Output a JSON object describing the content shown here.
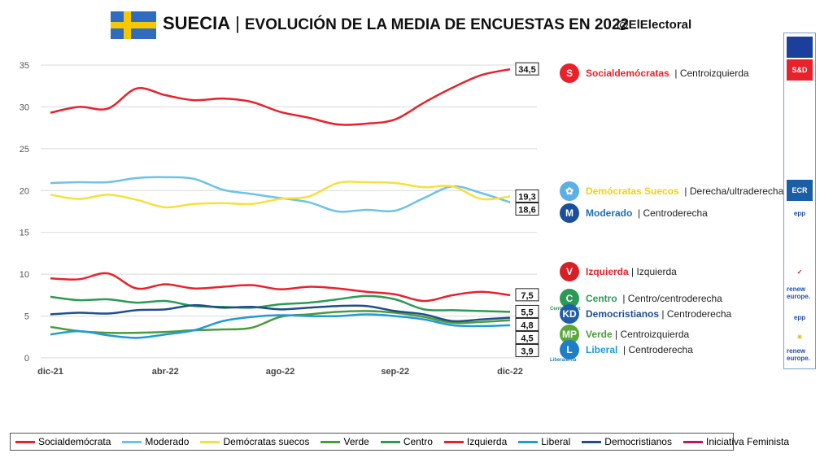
{
  "header": {
    "country": "SUECIA",
    "subtitle": "EVOLUCIÓN DE LA MEDIA DE ENCUESTAS EN 2022",
    "handle": "@ElElectoral",
    "separator": "|"
  },
  "chart_data": {
    "type": "line",
    "title": "SUECIA | EVOLUCIÓN DE LA MEDIA DE ENCUESTAS EN 2022",
    "x_labels": [
      "dic-21",
      "abr-22",
      "ago-22",
      "sep-22",
      "dic-22"
    ],
    "ylim": [
      0,
      35
    ],
    "yticks": [
      0,
      5,
      10,
      15,
      20,
      25,
      30,
      35
    ],
    "grid": true,
    "legend_position": "bottom",
    "series": [
      {
        "name": "Socialdemócrata",
        "color": "#e8222a",
        "label": "34,5",
        "values": [
          29.3,
          30.0,
          29.8,
          32.2,
          31.4,
          30.8,
          31.0,
          30.6,
          29.4,
          28.7,
          27.9,
          28.0,
          28.5,
          30.5,
          32.3,
          33.8,
          34.5
        ]
      },
      {
        "name": "Moderado",
        "color": "#6cc2ea",
        "label": "18,6",
        "values": [
          20.9,
          21.0,
          21.0,
          21.5,
          21.6,
          21.4,
          20.1,
          19.6,
          19.1,
          18.6,
          17.5,
          17.7,
          17.6,
          19.1,
          20.5,
          19.7,
          18.6
        ]
      },
      {
        "name": "Demócratas suecos",
        "color": "#f7e03b",
        "label": "19,3",
        "values": [
          19.5,
          19.0,
          19.5,
          18.9,
          18.0,
          18.4,
          18.5,
          18.4,
          19.0,
          19.3,
          20.9,
          21.0,
          20.9,
          20.4,
          20.5,
          19.0,
          19.3
        ]
      },
      {
        "name": "Verde",
        "color": "#4c9a3c",
        "label": "4,5",
        "values": [
          3.7,
          3.2,
          3.0,
          3.0,
          3.1,
          3.3,
          3.4,
          3.6,
          4.9,
          5.2,
          5.5,
          5.6,
          5.4,
          4.9,
          4.2,
          4.3,
          4.5
        ]
      },
      {
        "name": "Centro",
        "color": "#2a9a55",
        "label": "5,5",
        "values": [
          7.3,
          6.9,
          7.0,
          6.6,
          6.8,
          6.2,
          6.1,
          6.0,
          6.4,
          6.6,
          7.0,
          7.4,
          7.0,
          5.8,
          5.7,
          5.6,
          5.5
        ]
      },
      {
        "name": "Izquierda",
        "color": "#e8222a",
        "label": "7,5",
        "values": [
          9.5,
          9.4,
          10.1,
          8.3,
          8.8,
          8.3,
          8.5,
          8.7,
          8.2,
          8.5,
          8.3,
          7.9,
          7.6,
          6.8,
          7.5,
          7.9,
          7.5
        ]
      },
      {
        "name": "Liberal",
        "color": "#1f9bd6",
        "label": "3,9",
        "values": [
          2.8,
          3.2,
          2.7,
          2.4,
          2.8,
          3.3,
          4.4,
          4.9,
          5.1,
          5.0,
          5.0,
          5.2,
          5.0,
          4.6,
          3.9,
          3.8,
          3.9
        ]
      },
      {
        "name": "Democristianos",
        "color": "#1f4f8a",
        "label": "4,8",
        "values": [
          5.2,
          5.4,
          5.3,
          5.7,
          5.8,
          6.3,
          6.0,
          6.1,
          5.8,
          6.0,
          6.2,
          6.2,
          5.6,
          5.2,
          4.4,
          4.6,
          4.8
        ]
      },
      {
        "name": "Iniciativa Feminista",
        "color": "#c2185b",
        "values": []
      }
    ]
  },
  "annotations": [
    {
      "id": "sd",
      "name": "Socialdemócratas",
      "detail": " | Centroizquierda",
      "color": "#e8222a",
      "logo_color": "#e8222a",
      "logo_text": "S"
    },
    {
      "id": "dsue",
      "name": "Demócratas Suecos",
      "detail": " | Derecha/ultraderecha",
      "color": "#f2d10c",
      "logo_color": "#5ab0e6",
      "logo_text": "✿"
    },
    {
      "id": "mod",
      "name": "Moderado",
      "detail": " | Centroderecha",
      "color": "#1b6fb5",
      "logo_color": "#1b4f9c",
      "logo_text": "M"
    },
    {
      "id": "izq",
      "name": "Izquierda",
      "detail": "| Izquierda",
      "color": "#e8222a",
      "logo_color": "#d81f26",
      "logo_text": "V"
    },
    {
      "id": "cen",
      "name": "Centro",
      "detail": " | Centro/centroderecha",
      "color": "#2a9a55",
      "logo_color": "#2a9a55",
      "logo_text": "C",
      "logo_caption": "Centerpartiet"
    },
    {
      "id": "dc",
      "name": "Democristianos",
      "detail": "| Centroderecha",
      "color": "#1f4f8a",
      "logo_color": "#1f5fa8",
      "logo_text": "KD"
    },
    {
      "id": "ver",
      "name": "Verde",
      "detail": "| Centroizquierda",
      "color": "#4c9a3c",
      "logo_color": "#5aa83c",
      "logo_text": "MP"
    },
    {
      "id": "lib",
      "name": "Liberal",
      "detail": " | Centroderecha",
      "color": "#1f9bd6",
      "logo_color": "#1f7fc4",
      "logo_text": "L",
      "logo_caption": "Liberalerna"
    }
  ],
  "groups": [
    {
      "icon": "eu-flag-icon",
      "text": "",
      "bg": "#1d3f9c"
    },
    {
      "icon": "s-and-d-icon",
      "text": "S&D",
      "bg": "#e8222a"
    },
    {
      "icon": "ecr-icon",
      "text": "ECR",
      "bg": "#1a5fa6"
    },
    {
      "icon": "epp-icon",
      "text": "epp",
      "bg": "#ffffff",
      "fg": "#1f4fa8"
    },
    {
      "icon": "gue-icon",
      "text": "✓",
      "bg": "#ffffff",
      "fg": "#c81e2a"
    },
    {
      "icon": "renew-icon",
      "text": "renew europe.",
      "bg": "#ffffff",
      "fg": "#1f4fa8"
    },
    {
      "icon": "epp-icon-2",
      "text": "epp",
      "bg": "#ffffff",
      "fg": "#1f4fa8"
    },
    {
      "icon": "greens-icon",
      "text": "☀",
      "bg": "#ffffff",
      "fg": "#e8b000"
    },
    {
      "icon": "renew-icon-2",
      "text": "renew europe.",
      "bg": "#ffffff",
      "fg": "#1f4fa8"
    }
  ]
}
